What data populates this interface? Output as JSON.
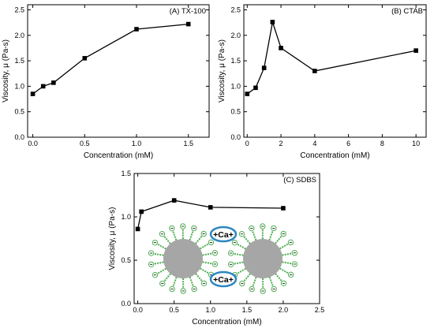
{
  "chart_data": [
    {
      "type": "line",
      "title": "(A) TX-100",
      "xlabel": "Concentration (mM)",
      "ylabel": "Viscosity, μ (Pa-s)",
      "xlim": [
        -0.05,
        1.7
      ],
      "ylim": [
        0,
        2.6
      ],
      "xticks": [
        0.0,
        0.5,
        1.0,
        1.5
      ],
      "xtick_labels": [
        "0.0",
        "0.5",
        "1.0",
        "1.5"
      ],
      "yticks": [
        0.0,
        0.5,
        1.0,
        1.5,
        2.0,
        2.5
      ],
      "ytick_labels": [
        "0.0",
        "0.5",
        "1.0",
        "1.5",
        "2.0",
        "2.5"
      ],
      "marker": "square",
      "color": "#000000",
      "series": [
        {
          "x": [
            0.0,
            0.1,
            0.2,
            0.5,
            1.0,
            1.5
          ],
          "y": [
            0.85,
            1.0,
            1.07,
            1.55,
            2.12,
            2.22
          ]
        }
      ]
    },
    {
      "type": "line",
      "title": "(B) CTAB",
      "xlabel": "Concentration (mM)",
      "ylabel": "Viscosity, μ (Pa-s)",
      "xlim": [
        -0.2,
        10.6
      ],
      "ylim": [
        0,
        2.6
      ],
      "xticks": [
        0,
        2,
        4,
        6,
        8,
        10
      ],
      "xtick_labels": [
        "0",
        "2",
        "4",
        "6",
        "8",
        "10"
      ],
      "yticks": [
        0.0,
        0.5,
        1.0,
        1.5,
        2.0,
        2.5
      ],
      "ytick_labels": [
        "0.0",
        "0.5",
        "1.0",
        "1.5",
        "2.0",
        "2.5"
      ],
      "marker": "square",
      "color": "#000000",
      "series": [
        {
          "x": [
            0.0,
            0.5,
            1.0,
            1.5,
            2.0,
            4.0,
            10.0
          ],
          "y": [
            0.85,
            0.97,
            1.36,
            2.26,
            1.75,
            1.3,
            1.7
          ]
        }
      ]
    },
    {
      "type": "line",
      "title": "(C) SDBS",
      "xlabel": "Concentration (mM)",
      "ylabel": "Viscosity, μ (Pa-s)",
      "xlim": [
        -0.05,
        2.5
      ],
      "ylim": [
        0,
        1.5
      ],
      "xticks": [
        0.0,
        0.5,
        1.0,
        1.5,
        2.0,
        2.5
      ],
      "xtick_labels": [
        "0.0",
        "0.5",
        "1.0",
        "1.5",
        "2.0",
        "2.5"
      ],
      "yticks": [
        0.0,
        0.5,
        1.0,
        1.5
      ],
      "ytick_labels": [
        "0.0",
        "0.5",
        "1.0",
        "1.5"
      ],
      "marker": "square",
      "color": "#000000",
      "series": [
        {
          "x": [
            0.0,
            0.05,
            0.5,
            1.0,
            2.0
          ],
          "y": [
            0.86,
            1.06,
            1.19,
            1.11,
            1.1
          ]
        }
      ],
      "inset": {
        "ion_labels": [
          "+Ca+",
          "+Ca+"
        ],
        "micelle_color": "#a6a6a6",
        "chain_color": "#4caf50",
        "ion_ring_color": "#2e86c1"
      }
    }
  ]
}
